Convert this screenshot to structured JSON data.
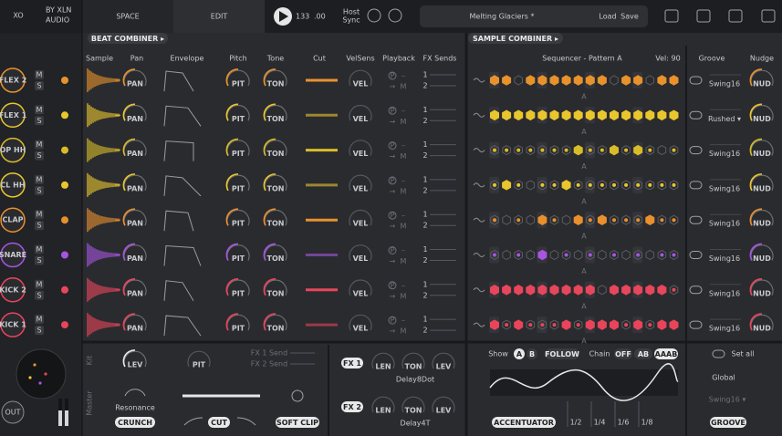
{
  "header": {
    "logo": "XO",
    "by": "BY XLN",
    "audio": "AUDIO",
    "tabs": [
      "SPACE",
      "EDIT"
    ],
    "tempo": "133",
    "tempo_decimals": ".00",
    "host_sync": [
      "Host",
      "Sync"
    ],
    "preset": "Melting Glaciers *",
    "load": "Load",
    "save": "Save"
  },
  "combiners": [
    "BEAT COMBINER ▸",
    "SAMPLE COMBINER ▸"
  ],
  "columns": [
    "Sample",
    "Pan",
    "Envelope",
    "Pitch",
    "Tone",
    "Cut",
    "VelSens",
    "Playback",
    "FX Sends"
  ],
  "sequencer": {
    "title": "Sequencer - Pattern A",
    "vel": "Vel: 90",
    "pattern": "A"
  },
  "groove_columns": [
    "Groove",
    "Nudge"
  ],
  "tracks": [
    {
      "name": "FLEX 2",
      "color": "#e8922c",
      "groove": "Swing16"
    },
    {
      "name": "FLEX 1",
      "color": "#e9c62e",
      "groove": "Rushed ▾"
    },
    {
      "name": "OP HH",
      "color": "#d9bc2a",
      "groove": "Swing16"
    },
    {
      "name": "CL HH",
      "color": "#e9c62e",
      "groove": "Swing16"
    },
    {
      "name": "CLAP",
      "color": "#e8902e",
      "groove": "Swing16"
    },
    {
      "name": "SNARE",
      "color": "#a655e0",
      "groove": "Swing16"
    },
    {
      "name": "KICK 2",
      "color": "#e8465c",
      "groove": "Swing16"
    },
    {
      "name": "KICK 1",
      "color": "#e8445a",
      "groove": "Swing16"
    }
  ],
  "track_buttons": [
    "M",
    "S"
  ],
  "knobs": [
    "PAN",
    "PIT",
    "TON",
    "VEL",
    "NUD"
  ],
  "playback": [
    "P",
    "–",
    "→",
    "M"
  ],
  "sends": [
    "1",
    "2"
  ],
  "kit": {
    "label": "Kit",
    "lev": "LEV",
    "pit": "PIT",
    "sends": [
      "FX 1 Send",
      "FX 2 Send"
    ]
  },
  "master": {
    "label": "Master",
    "resonance": "Resonance",
    "crunch": "CRUNCH",
    "cut": "CUT",
    "soft_clip": "SOFT CLIP",
    "out": "OUT"
  },
  "fx": [
    {
      "name": "FX 1",
      "preset": "Delay8Dot"
    },
    {
      "name": "FX 2",
      "preset": "Delay4T"
    }
  ],
  "fx_knobs": [
    "LEN",
    "TON",
    "LEV"
  ],
  "seq_bottom": {
    "show": "Show",
    "patterns": [
      "A",
      "B"
    ],
    "follow": "FOLLOW",
    "chain": "Chain",
    "chain_modes": [
      "OFF",
      "AB",
      "AAAB"
    ],
    "accentuator": "ACCENTUATOR",
    "divisions": [
      "1/2",
      "1/4",
      "1/6",
      "1/8"
    ]
  },
  "groove_bottom": {
    "set_all": "Set all",
    "global": "Global",
    "swing": "Swing16 ▾",
    "groove": "GROOVE"
  }
}
